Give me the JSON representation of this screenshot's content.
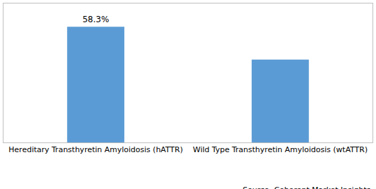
{
  "chart_data": {
    "type": "bar",
    "categories": [
      "Hereditary Transthyretin Amyloidosis (hATTR)",
      "Wild Type Transthyretin Amyloidosis (wtATTR)"
    ],
    "values": [
      58.3,
      41.7
    ],
    "value_labels": [
      "58.3%",
      null
    ],
    "data_labels": true,
    "color": "#5b9bd5",
    "ylim": [
      0,
      70
    ],
    "yticks": [],
    "grid": false,
    "tick_labels": "x",
    "annotations": [
      "Source: Coherent Market Insights"
    ]
  }
}
